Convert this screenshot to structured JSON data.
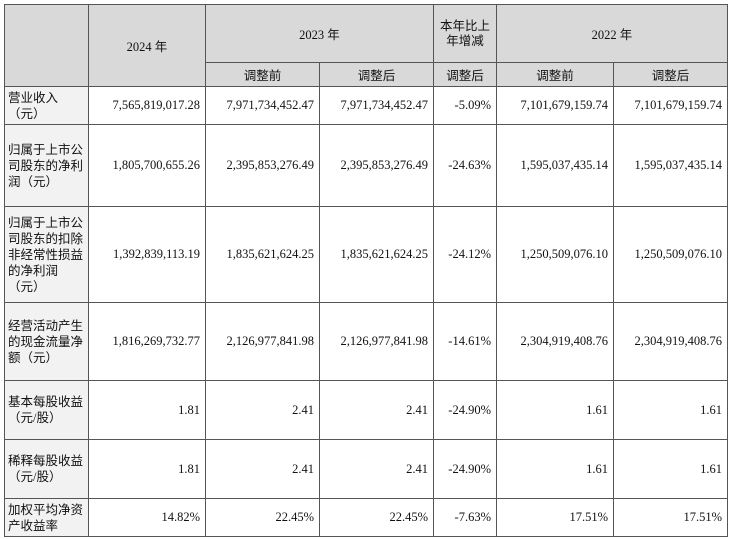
{
  "header": {
    "col_2024": "2024 年",
    "col_2023": "2023 年",
    "col_change": "本年比上年增减",
    "col_2022": "2022 年",
    "sub_before": "调整前",
    "sub_after": "调整后",
    "sub_change_after": "调整后",
    "sub_2022_before": "调整前",
    "sub_2022_after": "调整后"
  },
  "rows": [
    {
      "label": "营业收入（元）",
      "y2024": "7,565,819,017.28",
      "y2023_before": "7,971,734,452.47",
      "y2023_after": "7,971,734,452.47",
      "change": "-5.09%",
      "y2022_before": "7,101,679,159.74",
      "y2022_after": "7,101,679,159.74"
    },
    {
      "label": "归属于上市公司股东的净利润（元）",
      "y2024": "1,805,700,655.26",
      "y2023_before": "2,395,853,276.49",
      "y2023_after": "2,395,853,276.49",
      "change": "-24.63%",
      "y2022_before": "1,595,037,435.14",
      "y2022_after": "1,595,037,435.14"
    },
    {
      "label": "归属于上市公司股东的扣除非经常性损益的净利润（元）",
      "y2024": "1,392,839,113.19",
      "y2023_before": "1,835,621,624.25",
      "y2023_after": "1,835,621,624.25",
      "change": "-24.12%",
      "y2022_before": "1,250,509,076.10",
      "y2022_after": "1,250,509,076.10"
    },
    {
      "label": "经营活动产生的现金流量净额（元）",
      "y2024": "1,816,269,732.77",
      "y2023_before": "2,126,977,841.98",
      "y2023_after": "2,126,977,841.98",
      "change": "-14.61%",
      "y2022_before": "2,304,919,408.76",
      "y2022_after": "2,304,919,408.76"
    },
    {
      "label": "基本每股收益（元/股）",
      "y2024": "1.81",
      "y2023_before": "2.41",
      "y2023_after": "2.41",
      "change": "-24.90%",
      "y2022_before": "1.61",
      "y2022_after": "1.61"
    },
    {
      "label": "稀释每股收益（元/股）",
      "y2024": "1.81",
      "y2023_before": "2.41",
      "y2023_after": "2.41",
      "change": "-24.90%",
      "y2022_before": "1.61",
      "y2022_after": "1.61"
    },
    {
      "label": "加权平均净资产收益率",
      "y2024": "14.82%",
      "y2023_before": "22.45%",
      "y2023_after": "22.45%",
      "change": "-7.63%",
      "y2022_before": "17.51%",
      "y2022_after": "17.51%"
    }
  ]
}
